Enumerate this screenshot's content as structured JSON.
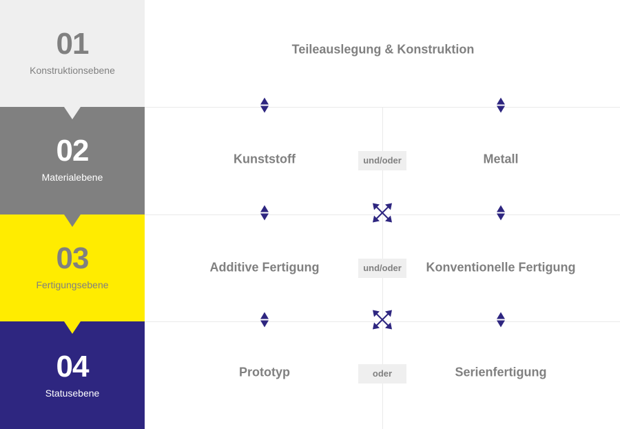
{
  "levels": [
    {
      "number": "01",
      "label": "Konstruktionsebene",
      "bg": "#efefef",
      "fg": "#808080"
    },
    {
      "number": "02",
      "label": "Materialebene",
      "bg": "#808080",
      "fg": "#ffffff"
    },
    {
      "number": "03",
      "label": "Fertigungsebene",
      "bg": "#ffec00",
      "fg": "#808080"
    },
    {
      "number": "04",
      "label": "Statusebene",
      "bg": "#2e2680",
      "fg": "#ffffff"
    }
  ],
  "rows": {
    "r1": {
      "center": "Teileauslegung & Konstruktion"
    },
    "r2": {
      "left": "Kunststoff",
      "connector": "und/oder",
      "right": "Metall"
    },
    "r3": {
      "left": "Additive Fertigung",
      "connector": "und/oder",
      "right": "Konventionelle Fertigung"
    },
    "r4": {
      "left": "Prototyp",
      "connector": "oder",
      "right": "Serienfertigung"
    }
  },
  "icons": {
    "vertical": "up-down-arrow-icon",
    "cross": "cross-arrows-icon",
    "color": "#2e2680"
  }
}
